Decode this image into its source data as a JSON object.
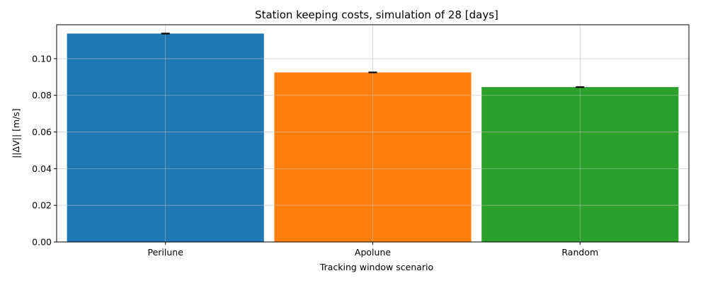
{
  "chart_data": {
    "type": "bar",
    "title": "Station keeping costs, simulation of 28 [days]",
    "xlabel": "Tracking window scenario",
    "ylabel": "||ΔV|| [m/s]",
    "categories": [
      "Perilune",
      "Apolune",
      "Random"
    ],
    "values": [
      0.1137,
      0.0925,
      0.0845
    ],
    "errors": [
      0.0002,
      0.0002,
      0.0002
    ],
    "colors": [
      "#1f77b4",
      "#ff7f0e",
      "#2ca02c"
    ],
    "ylim": [
      0,
      0.1185
    ],
    "yticks": [
      0.0,
      0.02,
      0.04,
      0.06,
      0.08,
      0.1
    ],
    "ytick_labels": [
      "0.00",
      "0.02",
      "0.04",
      "0.06",
      "0.08",
      "0.10"
    ],
    "grid": true,
    "legend": "none"
  }
}
